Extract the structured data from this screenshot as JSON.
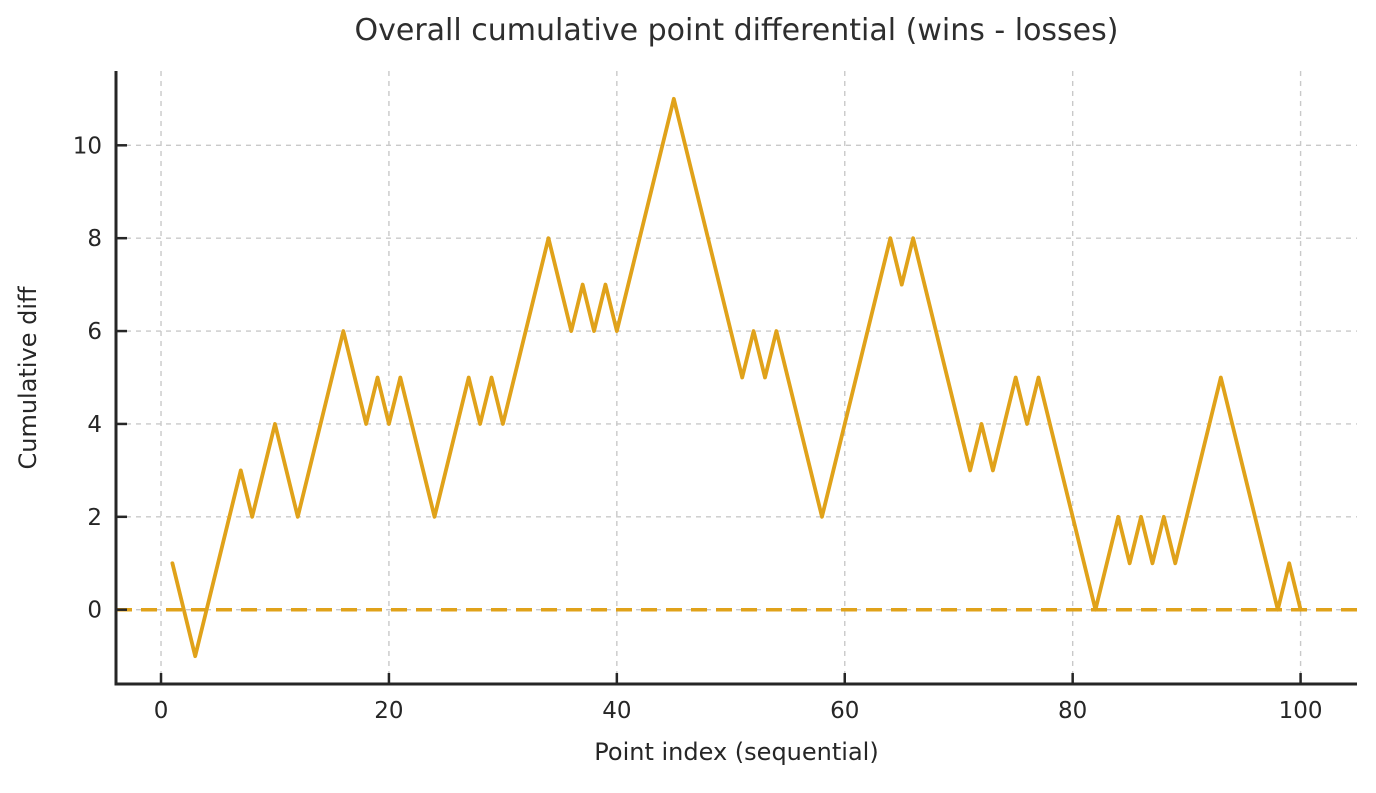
{
  "chart_data": {
    "type": "line",
    "title": "Overall cumulative point differential (wins - losses)",
    "xlabel": "Point index (sequential)",
    "ylabel": "Cumulative diff",
    "series": [
      {
        "name": "cumulative-diff",
        "x": [
          1,
          2,
          3,
          4,
          5,
          6,
          7,
          8,
          9,
          10,
          11,
          12,
          13,
          14,
          15,
          16,
          17,
          18,
          19,
          20,
          21,
          22,
          23,
          24,
          25,
          26,
          27,
          28,
          29,
          30,
          31,
          32,
          33,
          34,
          35,
          36,
          37,
          38,
          39,
          40,
          41,
          42,
          43,
          44,
          45,
          46,
          47,
          48,
          49,
          50,
          51,
          52,
          53,
          54,
          55,
          56,
          57,
          58,
          59,
          60,
          61,
          62,
          63,
          64,
          65,
          66,
          67,
          68,
          69,
          70,
          71,
          72,
          73,
          74,
          75,
          76,
          77,
          78,
          79,
          80,
          81,
          82,
          83,
          84,
          85,
          86,
          87,
          88,
          89,
          90,
          91,
          92,
          93,
          94,
          95,
          96,
          97,
          98,
          99,
          100
        ],
        "y": [
          1,
          0,
          -1,
          0,
          1,
          2,
          3,
          2,
          3,
          4,
          3,
          2,
          3,
          4,
          5,
          6,
          5,
          4,
          5,
          4,
          5,
          4,
          3,
          2,
          3,
          4,
          5,
          4,
          5,
          4,
          5,
          6,
          7,
          8,
          7,
          6,
          7,
          6,
          7,
          6,
          7,
          8,
          9,
          10,
          11,
          10,
          9,
          8,
          7,
          6,
          5,
          6,
          5,
          6,
          5,
          4,
          3,
          2,
          3,
          4,
          5,
          6,
          7,
          8,
          7,
          8,
          7,
          6,
          5,
          4,
          3,
          4,
          3,
          4,
          5,
          4,
          5,
          4,
          3,
          2,
          1,
          0,
          1,
          2,
          1,
          2,
          1,
          2,
          1,
          2,
          3,
          4,
          5,
          4,
          3,
          2,
          1,
          0,
          1,
          0
        ]
      }
    ],
    "baseline": {
      "y": 0,
      "style": "dashed"
    },
    "x_ticks": [
      0,
      20,
      40,
      60,
      80,
      100
    ],
    "y_ticks": [
      0,
      2,
      4,
      6,
      8,
      10
    ],
    "xlim": [
      -3.95,
      104.95
    ],
    "ylim": [
      -1.6,
      11.6
    ],
    "grid": true,
    "grid_style": "dashed",
    "legend": "none",
    "colors": {
      "line": "#E0A21A",
      "baseline": "#E0A21A",
      "grid": "#C9C9C9",
      "axis": "#262626",
      "title": "#2e2e2e",
      "background": "#ffffff"
    }
  }
}
